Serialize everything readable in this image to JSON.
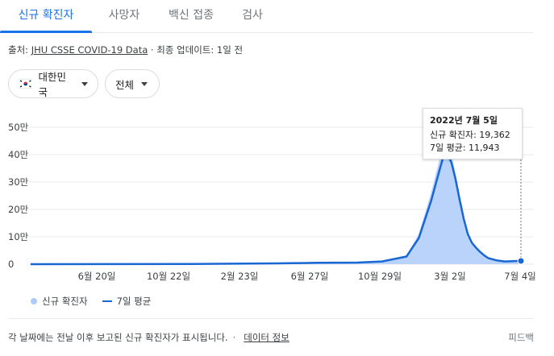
{
  "tabs": [
    {
      "label": "신규 확진자",
      "active": true
    },
    {
      "label": "사망자",
      "active": false
    },
    {
      "label": "백신 접종",
      "active": false
    },
    {
      "label": "검사",
      "active": false
    }
  ],
  "source": {
    "prefix": "출처:",
    "link": "JHU CSSE COVID-19 Data",
    "suffix": "· 최종 업데이트: 1일 전"
  },
  "filters": {
    "country": "대한민국",
    "range": "전체"
  },
  "chart_data": {
    "type": "area",
    "ytick_labels": [
      "0",
      "10만",
      "20만",
      "30만",
      "40만",
      "50만"
    ],
    "yticks": [
      0,
      100000,
      200000,
      300000,
      400000,
      500000
    ],
    "ylim": [
      0,
      500000
    ],
    "xtick_labels": [
      "6월 20일",
      "10월 22일",
      "2월 23일",
      "6월 27일",
      "10월 29일",
      "3월 2일",
      "7월 4일"
    ],
    "grid": true,
    "series": [
      {
        "name": "7일 평균",
        "x": [
          0,
          100,
          200,
          300,
          350,
          400,
          430,
          460,
          475,
          490,
          500,
          505,
          510,
          515,
          520,
          525,
          530,
          535,
          540,
          545,
          550,
          555,
          560,
          570,
          580,
          590,
          600
        ],
        "values": [
          0,
          300,
          1000,
          3000,
          5000,
          6000,
          10000,
          28000,
          95000,
          230000,
          340000,
          392000,
          403000,
          370000,
          310000,
          235000,
          165000,
          110000,
          78000,
          60000,
          45000,
          32000,
          22000,
          14000,
          10000,
          11000,
          11943
        ]
      },
      {
        "name": "신규 확진자",
        "x": [
          0,
          100,
          200,
          300,
          350,
          400,
          430,
          460,
          475,
          490,
          500,
          505,
          510,
          515,
          520,
          525,
          530,
          535,
          540,
          545,
          550,
          555,
          560,
          570,
          580,
          590,
          600
        ],
        "values": [
          0,
          400,
          1200,
          3500,
          6000,
          7000,
          12000,
          32000,
          110000,
          260000,
          380000,
          430000,
          445000,
          400000,
          330000,
          255000,
          180000,
          120000,
          85000,
          65000,
          50000,
          36000,
          25000,
          16000,
          12000,
          12500,
          19362
        ]
      }
    ]
  },
  "tooltip": {
    "date": "2022년 7월 5일",
    "cases": "신규 확진자: 19,362",
    "avg": "7일 평균: 11,943"
  },
  "legend": {
    "cases": "신규 확진자",
    "avg": "7일 평균"
  },
  "footer": {
    "note": "각 날짜에는 전날 이후 보고된 신규 확진자가 표시됩니다.",
    "separator": "·",
    "link": "데이터 정보",
    "feedback": "피드백"
  },
  "colors": {
    "accent": "#1a73e8",
    "line": "#1967d2",
    "area": "#aecbfa"
  }
}
